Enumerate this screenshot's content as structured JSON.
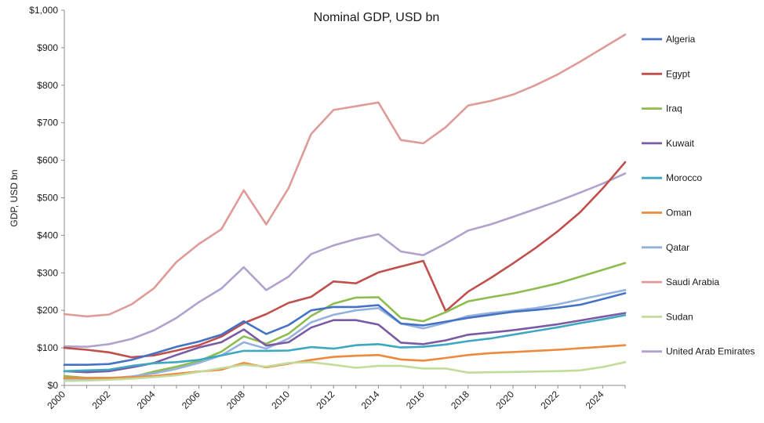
{
  "chart_data": {
    "type": "line",
    "title": "Nominal GDP, USD bn",
    "xlabel": "",
    "ylabel": "GDP, USD bn",
    "xlim": [
      2000,
      2025
    ],
    "ylim": [
      0,
      1000
    ],
    "x_ticks": [
      2000,
      2002,
      2004,
      2006,
      2008,
      2010,
      2012,
      2014,
      2016,
      2018,
      2020,
      2022,
      2024
    ],
    "x_tick_labels": [
      "2000",
      "2002",
      "2004",
      "2006",
      "2008",
      "2010",
      "2012",
      "2014",
      "2016",
      "2018",
      "2020",
      "2022",
      "2024"
    ],
    "y_ticks": [
      0,
      100,
      200,
      300,
      400,
      500,
      600,
      700,
      800,
      900,
      1000
    ],
    "y_tick_labels": [
      "$0",
      "$100",
      "$200",
      "$300",
      "$400",
      "$500",
      "$600",
      "$700",
      "$800",
      "$900",
      "$1,000"
    ],
    "grid": false,
    "legend_position": "right",
    "x": [
      2000,
      2001,
      2002,
      2003,
      2004,
      2005,
      2006,
      2007,
      2008,
      2009,
      2010,
      2011,
      2012,
      2013,
      2014,
      2015,
      2016,
      2017,
      2018,
      2019,
      2020,
      2021,
      2022,
      2023,
      2024,
      2025
    ],
    "series": [
      {
        "name": "Algeria",
        "color": "#4472c4",
        "values": [
          55,
          55,
          57,
          68,
          85,
          103,
          117,
          135,
          171,
          137,
          161,
          200,
          209,
          209,
          214,
          165,
          160,
          170,
          180,
          188,
          196,
          201,
          207,
          215,
          230,
          246
        ]
      },
      {
        "name": "Egypt",
        "color": "#c0504d",
        "values": [
          100,
          95,
          88,
          75,
          80,
          93,
          107,
          130,
          166,
          190,
          220,
          236,
          277,
          272,
          301,
          317,
          332,
          198,
          250,
          286,
          325,
          366,
          411,
          462,
          525,
          595
        ]
      },
      {
        "name": "Iraq",
        "color": "#8dbd4f",
        "values": [
          25,
          20,
          20,
          22,
          37,
          50,
          65,
          90,
          131,
          111,
          138,
          185,
          218,
          234,
          235,
          180,
          171,
          195,
          224,
          235,
          245,
          258,
          272,
          290,
          308,
          326
        ]
      },
      {
        "name": "Kuwait",
        "color": "#7a5aa4",
        "values": [
          38,
          35,
          38,
          48,
          60,
          81,
          101,
          115,
          149,
          106,
          115,
          154,
          174,
          174,
          162,
          114,
          110,
          120,
          135,
          141,
          147,
          155,
          163,
          173,
          183,
          193
        ]
      },
      {
        "name": "Morocco",
        "color": "#3fa8c1",
        "values": [
          38,
          40,
          42,
          52,
          59,
          62,
          68,
          80,
          92,
          92,
          93,
          102,
          98,
          107,
          110,
          101,
          103,
          109,
          118,
          125,
          135,
          145,
          155,
          166,
          176,
          187
        ]
      },
      {
        "name": "Oman",
        "color": "#ec8a3e",
        "values": [
          20,
          20,
          20,
          22,
          25,
          31,
          37,
          42,
          60,
          48,
          58,
          68,
          76,
          79,
          81,
          69,
          66,
          73,
          81,
          86,
          89,
          92,
          95,
          99,
          103,
          107
        ]
      },
      {
        "name": "Qatar",
        "color": "#94b2dd",
        "values": [
          18,
          18,
          19,
          24,
          32,
          44,
          60,
          80,
          115,
          98,
          125,
          168,
          188,
          200,
          206,
          165,
          152,
          167,
          185,
          193,
          199,
          206,
          216,
          229,
          242,
          254
        ]
      },
      {
        "name": "Saudi Arabia",
        "color": "#de9b98",
        "values": [
          190,
          184,
          189,
          216,
          259,
          329,
          377,
          416,
          520,
          429,
          526,
          670,
          734,
          744,
          754,
          654,
          645,
          688,
          746,
          758,
          775,
          800,
          829,
          863,
          899,
          935
        ]
      },
      {
        "name": "Sudan",
        "color": "#c3dc9b",
        "values": [
          12,
          13,
          15,
          18,
          22,
          27,
          36,
          46,
          55,
          50,
          60,
          62,
          55,
          47,
          52,
          52,
          45,
          45,
          34,
          35,
          36,
          37,
          38,
          40,
          49,
          62
        ]
      },
      {
        "name": "United Arab Emirates",
        "color": "#b1a2cd",
        "values": [
          104,
          103,
          110,
          124,
          147,
          180,
          222,
          258,
          315,
          254,
          290,
          350,
          373,
          390,
          403,
          357,
          347,
          378,
          413,
          429,
          449,
          470,
          491,
          514,
          538,
          565
        ]
      }
    ]
  }
}
